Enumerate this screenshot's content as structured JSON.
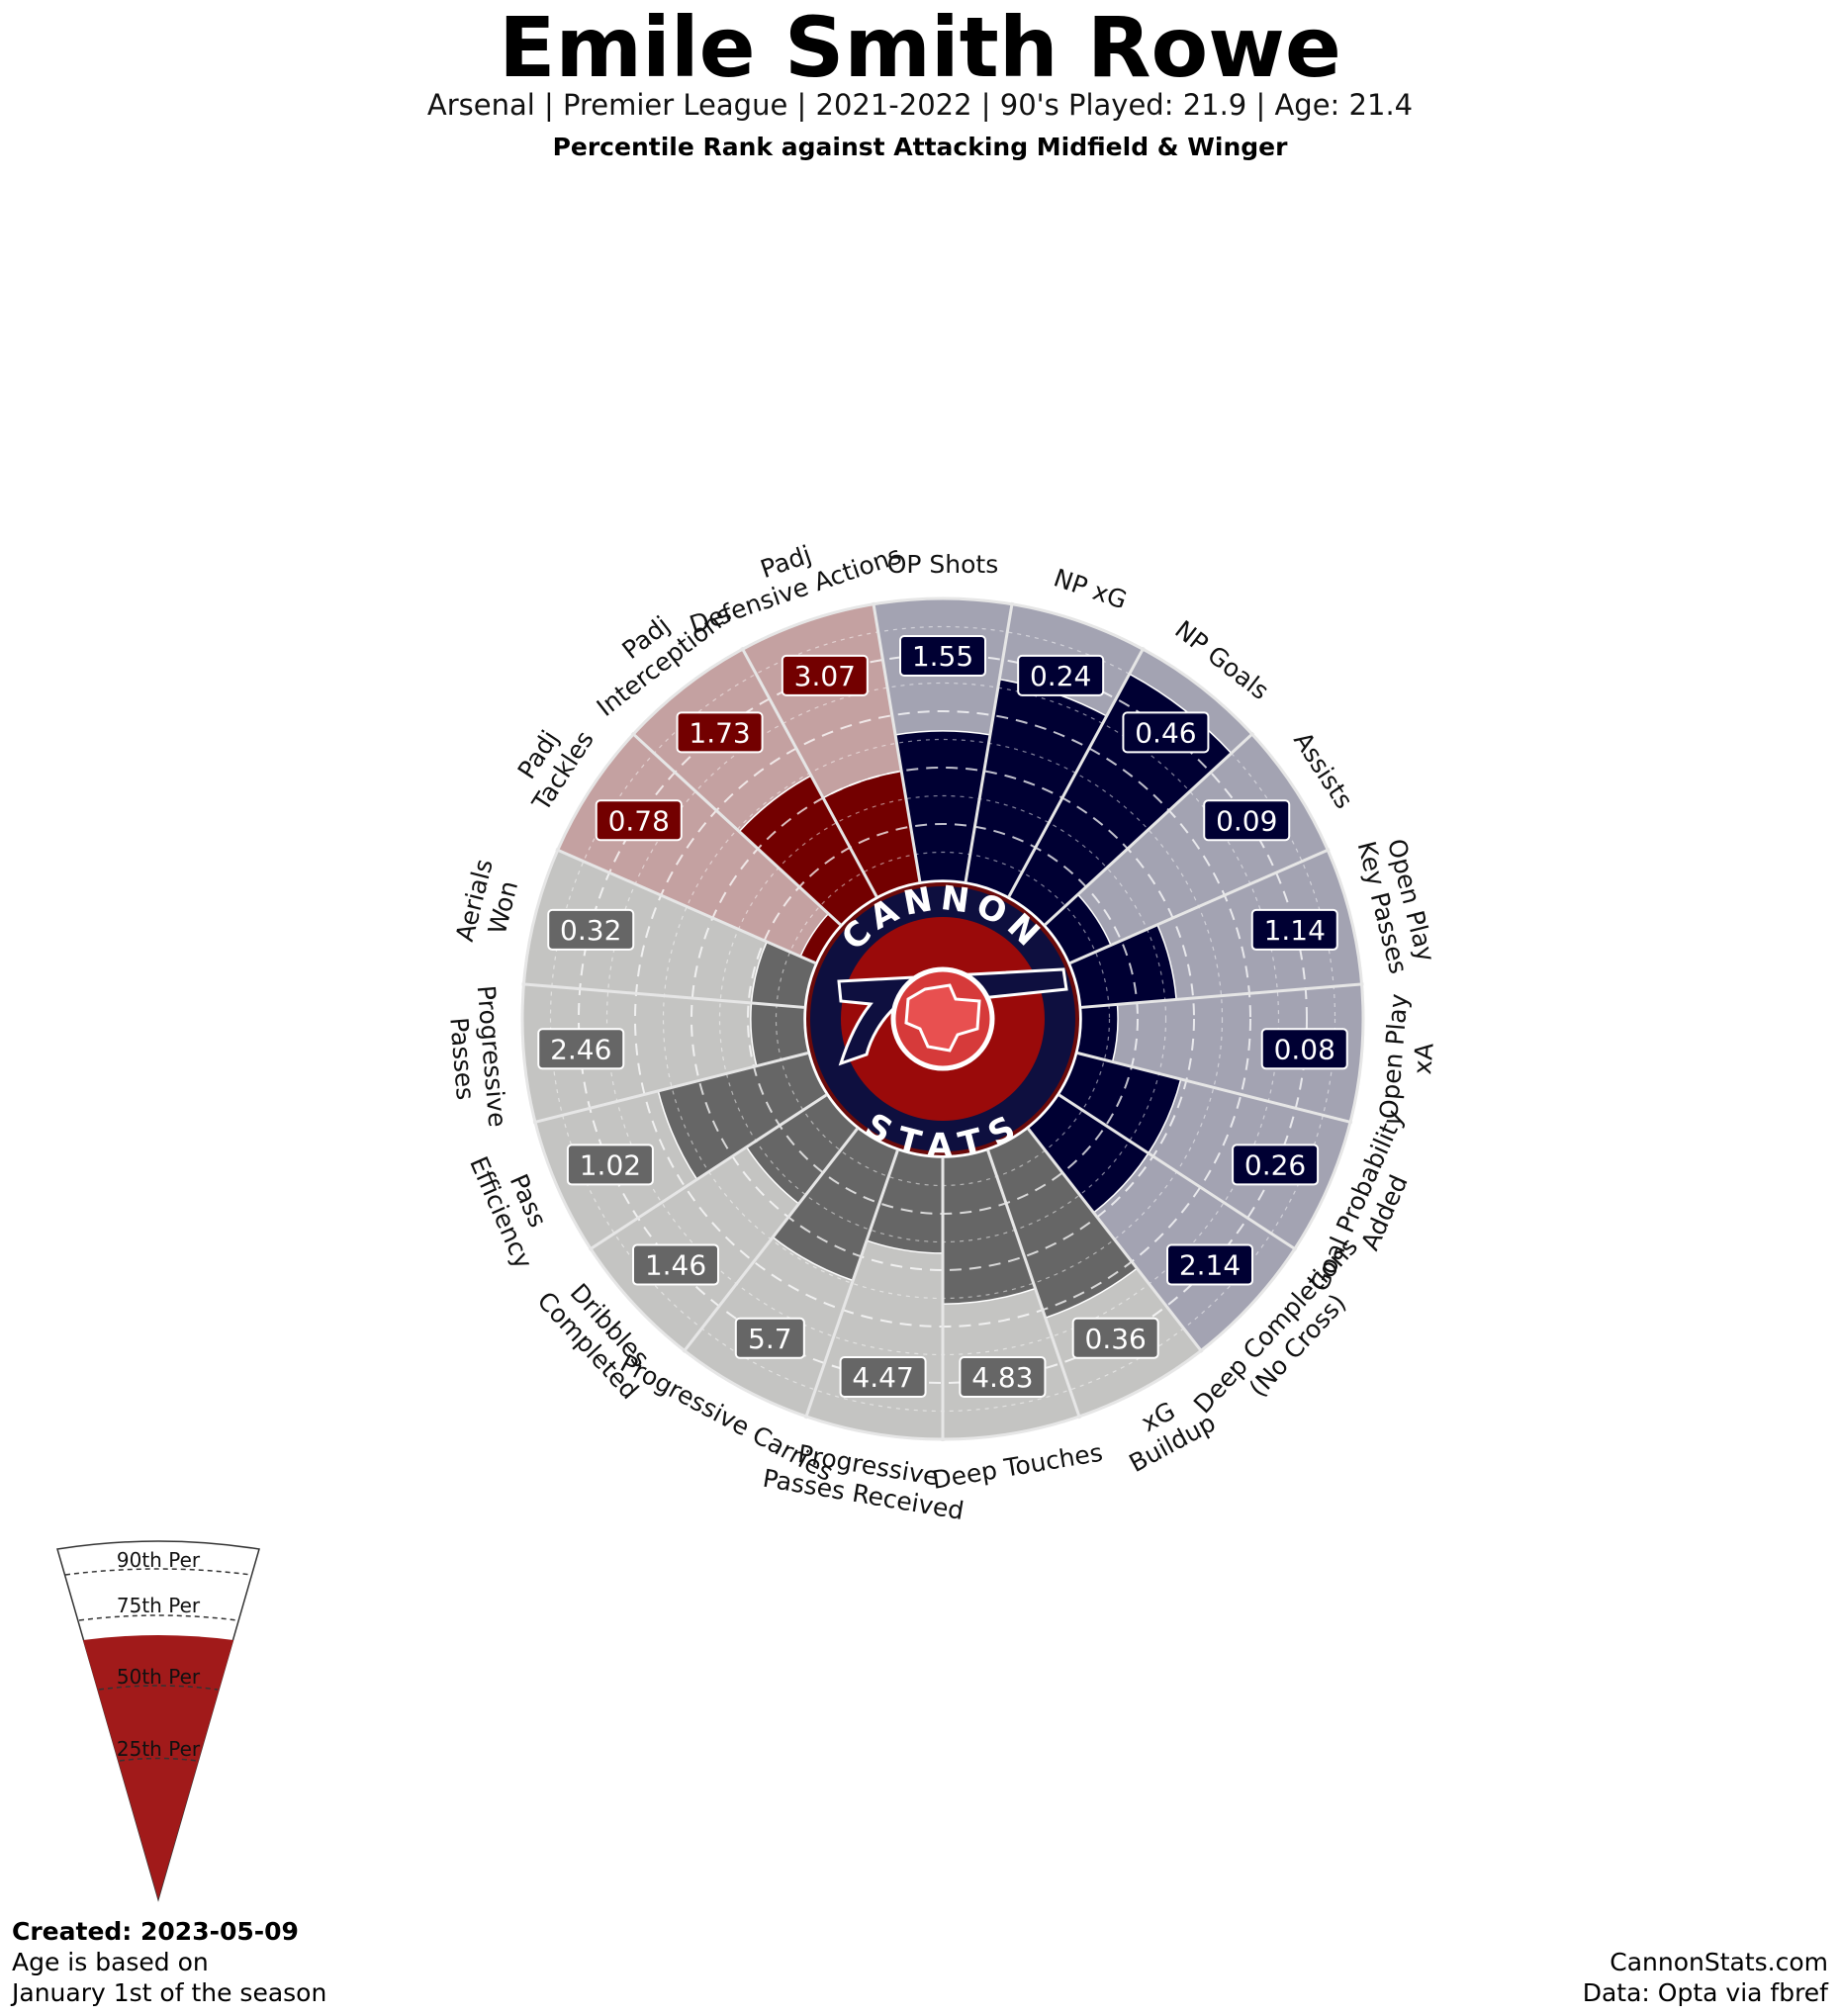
{
  "header": {
    "title": "Emile Smith Rowe",
    "subtitle": "Arsenal  | Premier League | 2021-2022 | 90's Played: 21.9 | Age: 21.4",
    "comparison": "Percentile Rank against Attacking Midfield & Winger"
  },
  "logo": {
    "top_text": "CANNON",
    "bottom_text": "STATS",
    "ring_color": "#0e0f3f",
    "inner_color": "#9a0a0a"
  },
  "legend": {
    "labels": [
      "90th Per",
      "75th Per",
      "50th Per",
      "25th Per"
    ],
    "fill_color": "#a11a1a"
  },
  "footer": {
    "created": "Created: 2023-05-09",
    "age_note_line1": "Age is based on",
    "age_note_line2": "January 1st of the season",
    "site": "CannonStats.com",
    "source": "Data: Opta via fbref"
  },
  "colors": {
    "attacking_bar": "#000033",
    "attacking_bg": "#a3a3b2",
    "defensive_bar": "#730000",
    "defensive_bg": "#c4a1a1",
    "possession_bar": "#666666",
    "possession_bg": "#c4c4c2"
  },
  "chart_data": {
    "type": "radar",
    "scale": [
      0,
      100
    ],
    "rings": [
      10,
      20,
      30,
      40,
      50,
      60,
      70,
      80,
      90
    ],
    "categories": [
      {
        "label": "OP Shots",
        "value": 1.55,
        "percentile": 53,
        "group": "attacking"
      },
      {
        "label": "NP xG",
        "value": 0.24,
        "percentile": 73,
        "group": "attacking"
      },
      {
        "label": "NP Goals",
        "value": 0.46,
        "percentile": 90,
        "group": "attacking"
      },
      {
        "label": "Assists",
        "value": 0.09,
        "percentile": 16,
        "group": "attacking"
      },
      {
        "label": "Open Play\nKey Passes",
        "value": 1.14,
        "percentile": 34,
        "group": "attacking"
      },
      {
        "label": "Open Play\nxA",
        "value": 0.08,
        "percentile": 13,
        "group": "attacking"
      },
      {
        "label": "Goal Probability\nAdded",
        "value": 0.26,
        "percentile": 38,
        "group": "attacking"
      },
      {
        "label": "Deep Completions\n(No Cross)",
        "value": 2.14,
        "percentile": 38,
        "group": "attacking"
      },
      {
        "label": "xG\nBuildup",
        "value": 0.36,
        "percentile": 63,
        "group": "possession"
      },
      {
        "label": "Deep Touches",
        "value": 4.83,
        "percentile": 52,
        "group": "possession"
      },
      {
        "label": "Progressive\nPasses Received",
        "value": 4.47,
        "percentile": 34,
        "group": "possession"
      },
      {
        "label": "Progressive Carries",
        "value": 5.7,
        "percentile": 49,
        "group": "possession"
      },
      {
        "label": "Dribbles\nCompleted",
        "value": 1.46,
        "percentile": 34,
        "group": "possession"
      },
      {
        "label": "Pass\nEfficiency",
        "value": 1.02,
        "percentile": 55,
        "group": "possession"
      },
      {
        "label": "Progressive\nPasses",
        "value": 2.46,
        "percentile": 19,
        "group": "possession"
      },
      {
        "label": "Aerials\nWon",
        "value": 0.32,
        "percentile": 19,
        "group": "possession"
      },
      {
        "label": "Padj\nTackles",
        "value": 0.78,
        "percentile": 6,
        "group": "defensive"
      },
      {
        "label": "Padj\nInterceptions",
        "value": 1.73,
        "percentile": 49,
        "group": "defensive"
      },
      {
        "label": "Padj\nDefensive Actions",
        "value": 3.07,
        "percentile": 40,
        "group": "defensive"
      }
    ]
  }
}
